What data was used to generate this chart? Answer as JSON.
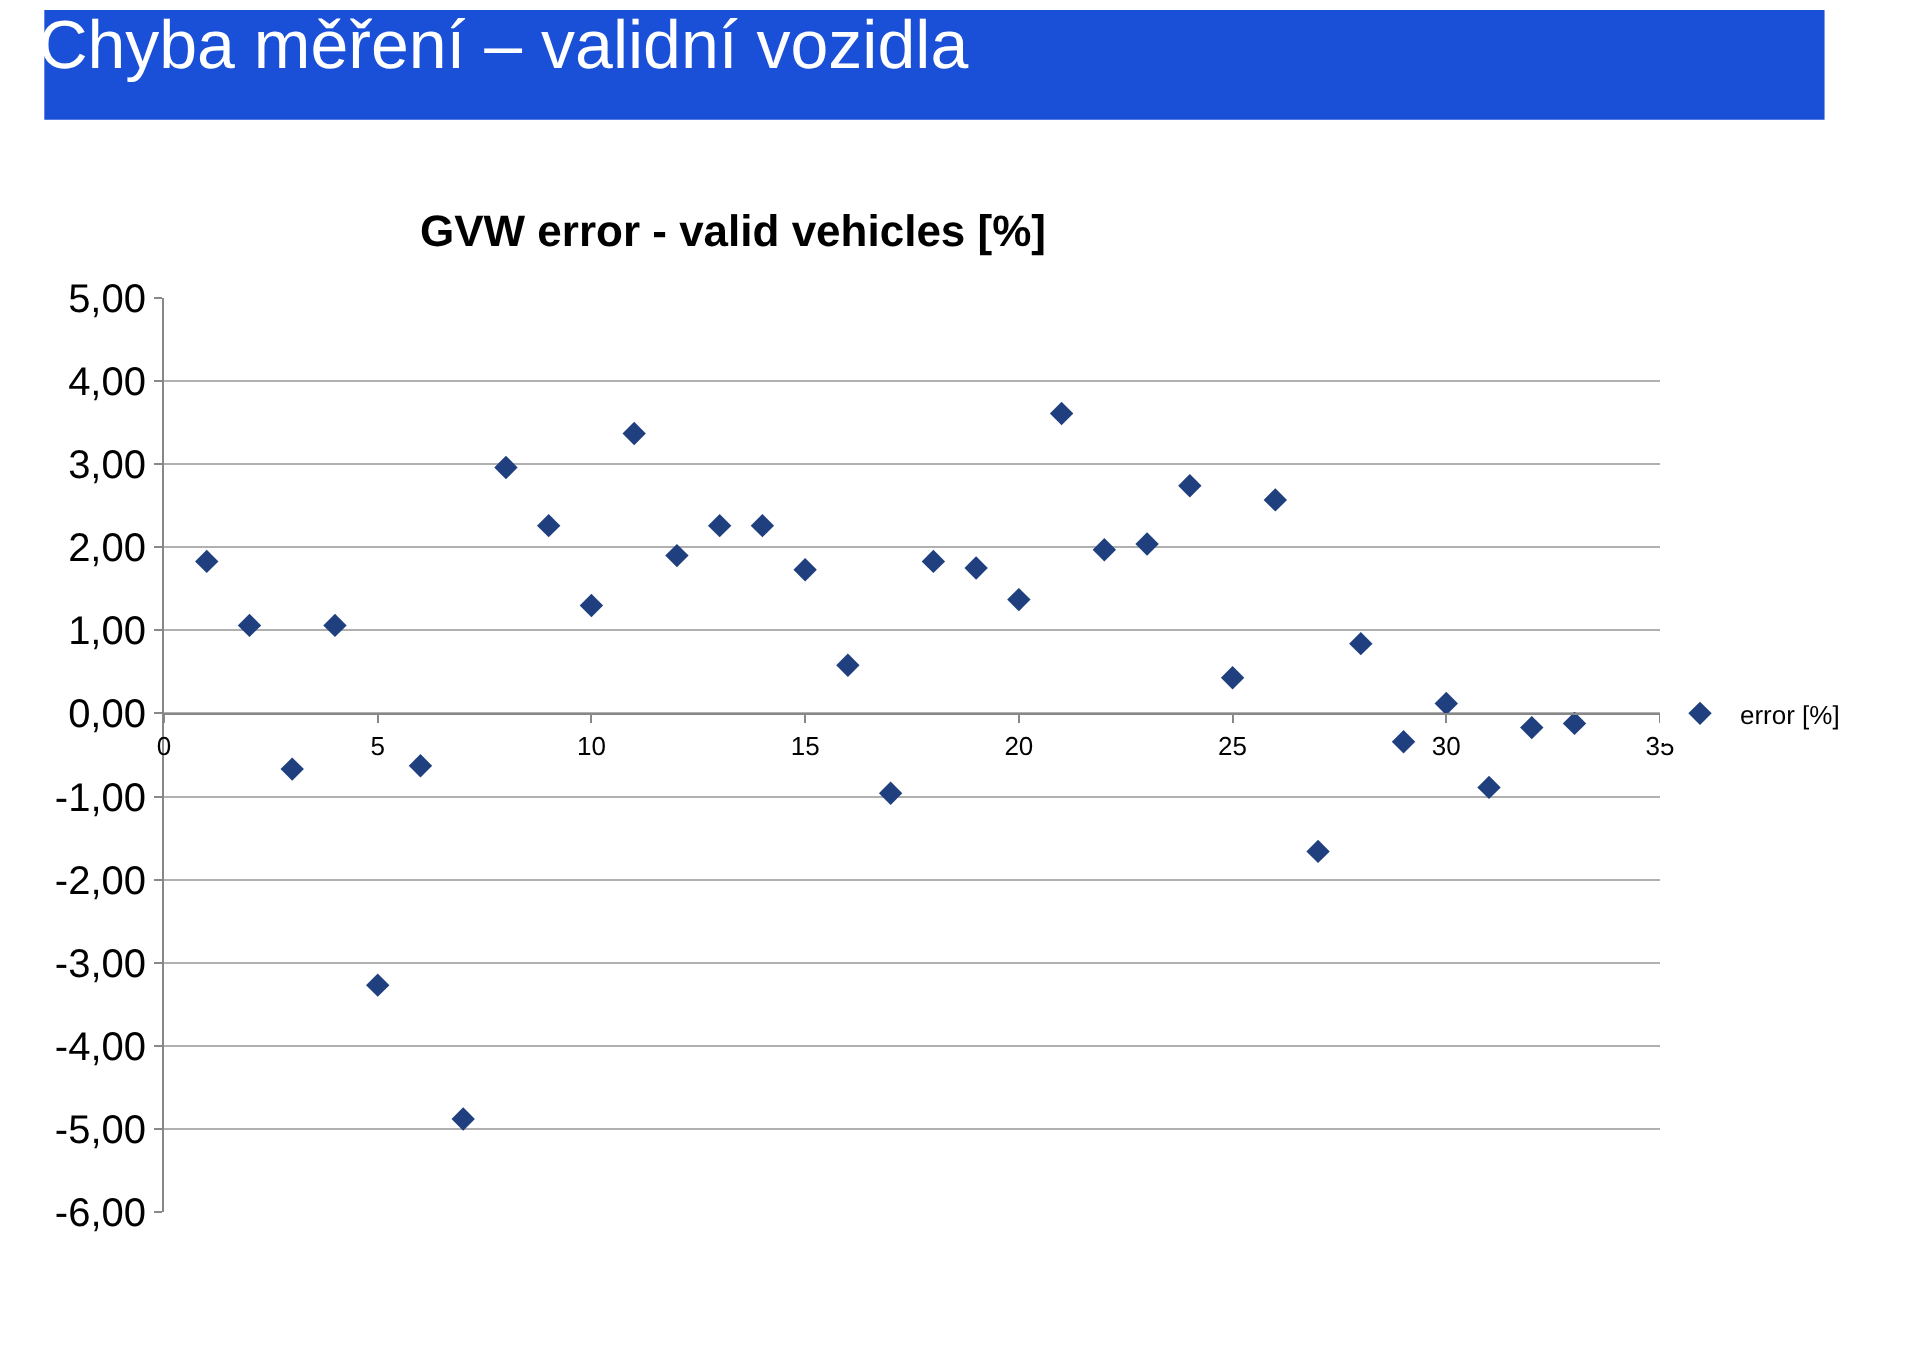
{
  "chart_data": {
    "type": "scatter",
    "title": "Chyba měření – validní vozidla",
    "subtitle": "GVW error - valid vehicles [%]",
    "x": [
      1,
      2,
      3,
      4,
      5,
      6,
      7,
      8,
      9,
      10,
      11,
      12,
      13,
      14,
      15,
      16,
      17,
      18,
      19,
      20,
      21,
      22,
      23,
      24,
      25,
      26,
      27,
      28,
      29,
      30,
      31,
      32,
      33
    ],
    "series": [
      {
        "name": "error [%]",
        "color": "#1f3f7f",
        "values": [
          1.83,
          1.06,
          -0.67,
          1.06,
          -3.27,
          -0.63,
          -4.88,
          2.96,
          2.26,
          1.3,
          3.37,
          1.9,
          2.26,
          2.26,
          1.73,
          0.58,
          -0.96,
          1.83,
          1.75,
          1.37,
          3.61,
          1.97,
          2.04,
          2.74,
          0.43,
          2.57,
          -1.66,
          0.84,
          -0.34,
          0.12,
          -0.89,
          -0.17,
          -0.12
        ]
      }
    ],
    "xlim": [
      0,
      35
    ],
    "xticks": [
      0,
      5,
      10,
      15,
      20,
      25,
      30,
      35
    ],
    "ylim": [
      -6,
      5
    ],
    "yticks": [
      {
        "value": 5,
        "label": "5,00"
      },
      {
        "value": 4,
        "label": "4,00"
      },
      {
        "value": 3,
        "label": "3,00"
      },
      {
        "value": 2,
        "label": "2,00"
      },
      {
        "value": 1,
        "label": "1,00"
      },
      {
        "value": 0,
        "label": "0,00"
      },
      {
        "value": -1,
        "label": "-1,00"
      },
      {
        "value": -2,
        "label": "-2,00"
      },
      {
        "value": -3,
        "label": "-3,00"
      },
      {
        "value": -4,
        "label": "-4,00"
      },
      {
        "value": -5,
        "label": "-5,00"
      },
      {
        "value": -6,
        "label": "-6,00"
      }
    ],
    "grid": "y",
    "legend": "right",
    "marker": "diamond"
  }
}
